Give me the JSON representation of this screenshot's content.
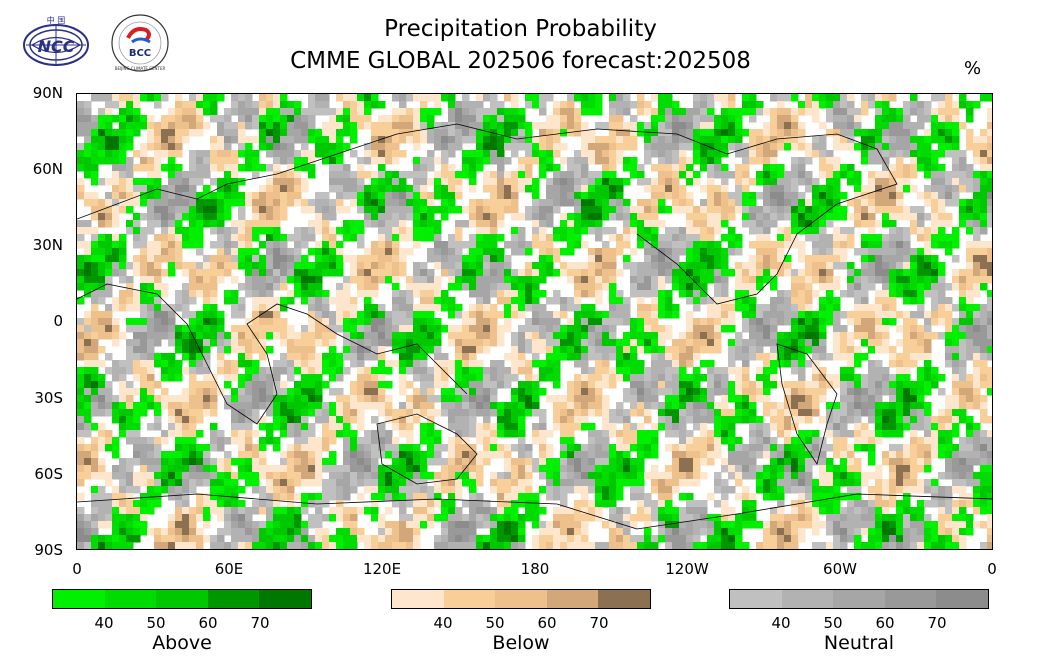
{
  "title_line1": "Precipitation Probability",
  "title_line2": "CMME GLOBAL 202506 forecast:202508",
  "unit": "%",
  "logos": {
    "left_text": "NCC",
    "left_top_text": "中 国",
    "right_text": "BCC",
    "right_ring_text": "BEIJING CLIMATE CENTER"
  },
  "map": {
    "projection": "equirectangular",
    "lon_range": [
      0,
      360
    ],
    "lat_range": [
      -90,
      90
    ],
    "lat_ticks": [
      "90N",
      "60N",
      "30N",
      "0",
      "30S",
      "60S",
      "90S"
    ],
    "lon_ticks": [
      "0",
      "60E",
      "120E",
      "180",
      "120W",
      "60W",
      "0"
    ],
    "categories": {
      "above": {
        "colors": [
          "#00f000",
          "#00dc00",
          "#00c800",
          "#009600",
          "#007800"
        ]
      },
      "below": {
        "colors": [
          "#fde6cc",
          "#f8cf98",
          "#eec08c",
          "#d2a87a",
          "#8b7152"
        ]
      },
      "neutral": {
        "colors": [
          "#c0c0c0",
          "#b2b2b2",
          "#a6a6a6",
          "#999999",
          "#8c8c8c"
        ]
      }
    }
  },
  "colorbars": [
    {
      "label": "Above",
      "ticks": [
        "40",
        "50",
        "60",
        "70"
      ],
      "colors": [
        "#00f000",
        "#00dc00",
        "#00c800",
        "#009600",
        "#007800"
      ]
    },
    {
      "label": "Below",
      "ticks": [
        "40",
        "50",
        "60",
        "70"
      ],
      "colors": [
        "#fde6cc",
        "#f8cf98",
        "#eec08c",
        "#d2a87a",
        "#8b7152"
      ]
    },
    {
      "label": "Neutral",
      "ticks": [
        "40",
        "50",
        "60",
        "70"
      ],
      "colors": [
        "#c0c0c0",
        "#b2b2b2",
        "#a6a6a6",
        "#999999",
        "#8c8c8c"
      ]
    }
  ]
}
